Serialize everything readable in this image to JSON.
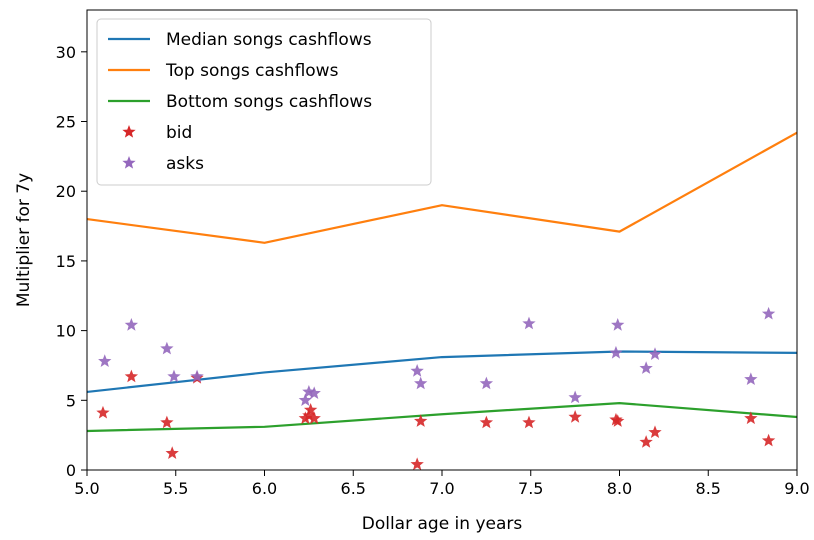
{
  "chart_data": {
    "type": "line",
    "xlabel": "Dollar age in years",
    "ylabel": "Multiplier for 7y",
    "xlim": [
      5.0,
      9.0
    ],
    "ylim": [
      0,
      33
    ],
    "grid": false,
    "legend_position": "top-left",
    "xticks": [
      "5.0",
      "5.5",
      "6.0",
      "6.5",
      "7.0",
      "7.5",
      "8.0",
      "8.5",
      "9.0"
    ],
    "yticks": [
      "0",
      "5",
      "10",
      "15",
      "20",
      "25",
      "30"
    ],
    "xtick_values": [
      5.0,
      5.5,
      6.0,
      6.5,
      7.0,
      7.5,
      8.0,
      8.5,
      9.0
    ],
    "ytick_values": [
      0,
      5,
      10,
      15,
      20,
      25,
      30
    ],
    "series": [
      {
        "name": "Median songs cashflows",
        "kind": "line",
        "color": "#1f77b4",
        "x": [
          5.0,
          6.0,
          7.0,
          8.0,
          9.0
        ],
        "y": [
          5.6,
          7.0,
          8.1,
          8.5,
          8.4
        ]
      },
      {
        "name": "Top songs cashflows",
        "kind": "line",
        "color": "#ff7f0e",
        "x": [
          5.0,
          6.0,
          7.0,
          8.0,
          9.0
        ],
        "y": [
          18.0,
          16.3,
          19.0,
          17.1,
          24.2
        ]
      },
      {
        "name": "Bottom songs cashflows",
        "kind": "line",
        "color": "#2ca02c",
        "x": [
          5.0,
          6.0,
          7.0,
          8.0,
          9.0
        ],
        "y": [
          2.8,
          3.1,
          4.0,
          4.8,
          3.8
        ]
      },
      {
        "name": "bid",
        "kind": "scatter",
        "marker": "star",
        "color": "#d62728",
        "x": [
          5.09,
          5.25,
          5.45,
          5.48,
          5.62,
          6.23,
          6.25,
          6.26,
          6.28,
          6.86,
          6.88,
          7.25,
          7.49,
          7.75,
          7.98,
          7.99,
          8.15,
          8.2,
          8.74,
          8.84
        ],
        "y": [
          4.1,
          6.7,
          3.4,
          1.2,
          6.6,
          3.7,
          3.9,
          4.3,
          3.7,
          0.4,
          3.5,
          3.4,
          3.4,
          3.8,
          3.6,
          3.5,
          2.0,
          2.7,
          3.7,
          2.1
        ]
      },
      {
        "name": "asks",
        "kind": "scatter",
        "marker": "star",
        "color": "#9467bd",
        "x": [
          5.1,
          5.25,
          5.45,
          5.49,
          5.62,
          6.23,
          6.25,
          6.28,
          6.86,
          6.88,
          7.25,
          7.49,
          7.75,
          7.98,
          7.99,
          8.15,
          8.2,
          8.74,
          8.84
        ],
        "y": [
          7.8,
          10.4,
          8.7,
          6.7,
          6.7,
          5.0,
          5.6,
          5.5,
          7.1,
          6.2,
          6.2,
          10.5,
          5.2,
          8.4,
          10.4,
          7.3,
          8.3,
          6.5,
          11.2
        ]
      }
    ]
  }
}
